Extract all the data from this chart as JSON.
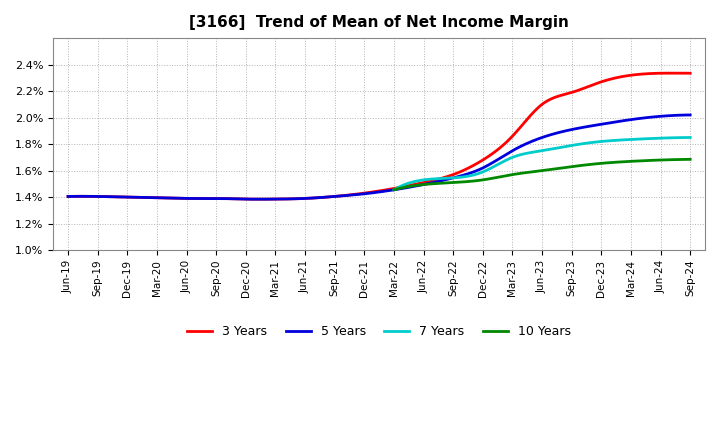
{
  "title": "[3166]  Trend of Mean of Net Income Margin",
  "ylim": [
    0.01,
    0.026
  ],
  "yticks": [
    0.01,
    0.012,
    0.014,
    0.016,
    0.018,
    0.02,
    0.022,
    0.024
  ],
  "background_color": "#ffffff",
  "plot_bg_color": "#ffffff",
  "grid_color": "#aaaaaa",
  "series": {
    "3 Years": {
      "color": "#ff0000",
      "x_indices": [
        0,
        1,
        2,
        3,
        4,
        5,
        6,
        7,
        8,
        9,
        10,
        11,
        12,
        13,
        14,
        15,
        16,
        17,
        18,
        19,
        20,
        21
      ],
      "values": [
        0.01405,
        0.01405,
        0.014,
        0.01395,
        0.0139,
        0.0139,
        0.01385,
        0.01385,
        0.0139,
        0.01405,
        0.0143,
        0.01465,
        0.0151,
        0.0157,
        0.0168,
        0.0186,
        0.021,
        0.0219,
        0.0227,
        0.0232,
        0.02335,
        0.02335
      ]
    },
    "5 Years": {
      "color": "#0000dd",
      "x_indices": [
        0,
        1,
        2,
        3,
        4,
        5,
        6,
        7,
        8,
        9,
        10,
        11,
        12,
        13,
        14,
        15,
        16,
        17,
        18,
        19,
        20,
        21
      ],
      "values": [
        0.01405,
        0.01405,
        0.014,
        0.01395,
        0.0139,
        0.0139,
        0.01385,
        0.01385,
        0.0139,
        0.01405,
        0.01425,
        0.01455,
        0.01495,
        0.01545,
        0.0162,
        0.0175,
        0.0185,
        0.0191,
        0.0195,
        0.01985,
        0.0201,
        0.0202
      ]
    },
    "7 Years": {
      "color": "#00cccc",
      "x_indices": [
        11,
        12,
        13,
        14,
        15,
        16,
        17,
        18,
        19,
        20,
        21
      ],
      "values": [
        0.01455,
        0.0153,
        0.01545,
        0.0159,
        0.017,
        0.0175,
        0.0179,
        0.0182,
        0.01835,
        0.01845,
        0.0185
      ]
    },
    "10 Years": {
      "color": "#008800",
      "x_indices": [
        11,
        12,
        13,
        14,
        15,
        16,
        17,
        18,
        19,
        20,
        21
      ],
      "values": [
        0.01455,
        0.01495,
        0.0151,
        0.0153,
        0.0157,
        0.016,
        0.0163,
        0.01655,
        0.0167,
        0.0168,
        0.01685
      ]
    }
  },
  "x_labels": [
    "Jun-19",
    "Sep-19",
    "Dec-19",
    "Mar-20",
    "Jun-20",
    "Sep-20",
    "Dec-20",
    "Mar-21",
    "Jun-21",
    "Sep-21",
    "Dec-21",
    "Mar-22",
    "Jun-22",
    "Sep-22",
    "Dec-22",
    "Mar-23",
    "Jun-23",
    "Sep-23",
    "Dec-23",
    "Mar-24",
    "Jun-24",
    "Sep-24"
  ],
  "legend": [
    "3 Years",
    "5 Years",
    "7 Years",
    "10 Years"
  ],
  "legend_colors": [
    "#ff0000",
    "#0000dd",
    "#00cccc",
    "#008800"
  ]
}
